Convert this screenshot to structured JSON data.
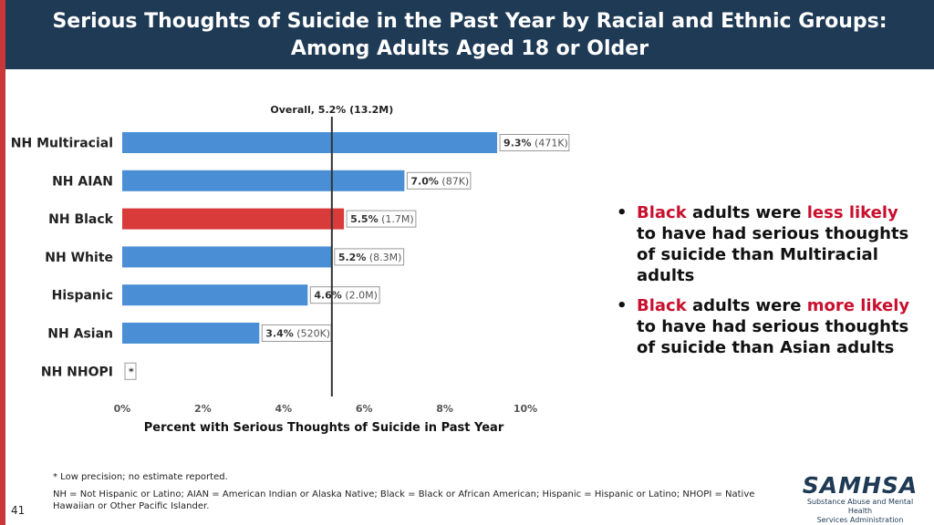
{
  "header": {
    "title_line1": "Serious Thoughts of Suicide in the Past Year by Racial and Ethnic Groups:",
    "title_line2": "Among Adults Aged 18 or Older"
  },
  "chart_data": {
    "type": "bar",
    "orientation": "horizontal",
    "categories": [
      "NH Multiracial",
      "NH AIAN",
      "NH Black",
      "NH White",
      "Hispanic",
      "NH Asian",
      "NH NHOPI"
    ],
    "values": [
      9.3,
      7.0,
      5.5,
      5.2,
      4.6,
      3.4,
      null
    ],
    "value_labels": [
      {
        "pct": "9.3%",
        "count": "(471K)"
      },
      {
        "pct": "7.0%",
        "count": "(87K)"
      },
      {
        "pct": "5.5%",
        "count": "(1.7M)"
      },
      {
        "pct": "5.2%",
        "count": "(8.3M)"
      },
      {
        "pct": "4.6%",
        "count": "(2.0M)"
      },
      {
        "pct": "3.4%",
        "count": "(520K)"
      },
      {
        "pct": "*",
        "count": ""
      }
    ],
    "highlight_category": "NH Black",
    "reference_line": {
      "value": 5.2,
      "label": "Overall, 5.2% (13.2M)"
    },
    "xlabel": "Percent with Serious Thoughts of Suicide in Past Year",
    "xlim": [
      0,
      10
    ],
    "xticks": [
      "0%",
      "2%",
      "4%",
      "6%",
      "8%",
      "10%"
    ],
    "colors": {
      "bar": "#4a8fd6",
      "highlight": "#d93a3a",
      "reference": "#333333"
    }
  },
  "bullets": [
    {
      "parts": [
        {
          "text": "Black",
          "hl": true
        },
        {
          "text": " adults were ",
          "hl": false
        },
        {
          "text": "less likely",
          "hl": true
        },
        {
          "text": " to have had serious thoughts of suicide than Multiracial adults",
          "hl": false
        }
      ]
    },
    {
      "parts": [
        {
          "text": "Black",
          "hl": true
        },
        {
          "text": " adults were ",
          "hl": false
        },
        {
          "text": "more likely",
          "hl": true
        },
        {
          "text": " to have had serious thoughts of suicide than Asian adults",
          "hl": false
        }
      ]
    }
  ],
  "footnote": "* Low precision; no estimate reported.",
  "abbreviations": "NH = Not Hispanic or Latino; AIAN = American Indian or Alaska Native; Black = Black or African American; Hispanic = Hispanic or Latino; NHOPI = Native Hawaiian or Other Pacific Islander.",
  "page_number": "41",
  "logo": {
    "name": "SAMHSA",
    "line1": "Substance Abuse and Mental Health",
    "line2": "Services Administration"
  }
}
